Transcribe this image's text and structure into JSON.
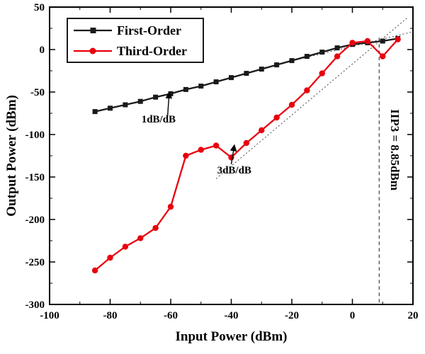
{
  "figure": {
    "xlabel": "Input Power (dBm)",
    "ylabel": "Output Power (dBm)"
  },
  "colors": {
    "first_order": "#1a1a1a",
    "third_order": "#e8000d",
    "guide": "#444444",
    "axis": "#000000"
  },
  "chart_data": {
    "type": "line",
    "title": "",
    "xlabel": "Input Power (dBm)",
    "ylabel": "Output Power (dBm)",
    "xlim": [
      -100,
      20
    ],
    "ylim": [
      -300,
      50
    ],
    "x_major_ticks": [
      -100,
      -80,
      -60,
      -40,
      -20,
      0,
      20
    ],
    "y_major_ticks": [
      -300,
      -250,
      -200,
      -150,
      -100,
      -50,
      0,
      50
    ],
    "x_minor_step": 10,
    "y_minor_step": 25,
    "grid": false,
    "legend_position": "top-left",
    "series": [
      {
        "name": "First-Order",
        "color": "#1a1a1a",
        "marker": "square",
        "x": [
          -85,
          -80,
          -75,
          -70,
          -65,
          -60,
          -55,
          -50,
          -45,
          -40,
          -35,
          -30,
          -25,
          -20,
          -15,
          -10,
          -5,
          0,
          5,
          10,
          15
        ],
        "y": [
          -73,
          -69,
          -65,
          -61,
          -56,
          -52,
          -47,
          -43,
          -38,
          -33,
          -28,
          -23,
          -18,
          -13,
          -8,
          -3,
          2,
          6,
          8,
          10,
          13
        ]
      },
      {
        "name": "Third-Order",
        "color": "#e8000d",
        "marker": "circle",
        "x": [
          -85,
          -80,
          -75,
          -70,
          -65,
          -60,
          -55,
          -50,
          -45,
          -40,
          -35,
          -30,
          -25,
          -20,
          -15,
          -10,
          -5,
          0,
          5,
          10,
          15
        ],
        "y": [
          -260,
          -245,
          -232,
          -222,
          -210,
          -185,
          -125,
          -118,
          -113,
          -127,
          -110,
          -95,
          -80,
          -65,
          -48,
          -28,
          -8,
          8,
          10,
          -8,
          12
        ]
      }
    ],
    "guide_lines": [
      {
        "name": "first-order-extrapolation",
        "x1": -30,
        "y1": -22,
        "x2": 20,
        "y2": 21,
        "dash": "2,3",
        "width": 1
      },
      {
        "name": "third-order-extrapolation",
        "x1": -45,
        "y1": -152,
        "x2": 18,
        "y2": 37,
        "dash": "2,3",
        "width": 1
      },
      {
        "name": "iip3-vertical-line",
        "x1": 8.85,
        "y1": 14,
        "x2": 8.85,
        "y2": -300,
        "dash": "5,4",
        "width": 1.2
      }
    ],
    "annotations": [
      {
        "text": "1dB/dB",
        "x": -64,
        "y": -86,
        "rotate": 0,
        "arrow": {
          "x1": -61,
          "y1": -77,
          "x2": -60.5,
          "y2": -51
        }
      },
      {
        "text": "3dB/dB",
        "x": -39,
        "y": -146,
        "rotate": 0,
        "arrow": {
          "x1": -40,
          "y1": -135,
          "x2": -39,
          "y2": -113
        }
      },
      {
        "text": "IIP3 = 8.85dBm",
        "x": 12.8,
        "y": -118,
        "rotate": 90
      }
    ],
    "iip3_value_dbm": 8.85
  }
}
